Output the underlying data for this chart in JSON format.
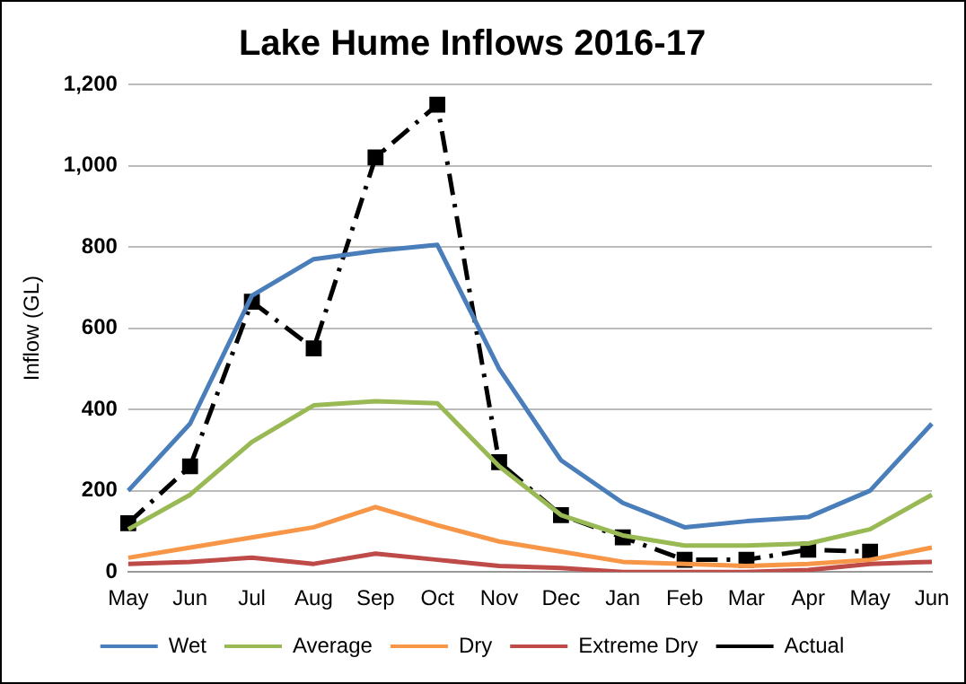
{
  "chart_data": {
    "type": "line",
    "title": "Lake Hume Inflows 2016-17",
    "ylabel": "Inflow (GL)",
    "categories": [
      "May",
      "Jun",
      "Jul",
      "Aug",
      "Sep",
      "Oct",
      "Nov",
      "Dec",
      "Jan",
      "Feb",
      "Mar",
      "Apr",
      "May",
      "Jun"
    ],
    "series": [
      {
        "name": "Wet",
        "color": "#4a7ebb",
        "marker": "none",
        "line_style": "solid",
        "values": [
          200,
          365,
          680,
          770,
          790,
          805,
          500,
          275,
          170,
          110,
          125,
          135,
          200,
          365
        ]
      },
      {
        "name": "Average",
        "color": "#98b954",
        "marker": "none",
        "line_style": "solid",
        "values": [
          105,
          190,
          320,
          410,
          420,
          415,
          260,
          140,
          90,
          65,
          65,
          70,
          105,
          190
        ]
      },
      {
        "name": "Dry",
        "color": "#f79646",
        "marker": "none",
        "line_style": "solid",
        "values": [
          35,
          60,
          85,
          110,
          160,
          115,
          75,
          50,
          25,
          20,
          15,
          20,
          30,
          60
        ]
      },
      {
        "name": "Extreme Dry",
        "color": "#be4b48",
        "marker": "none",
        "line_style": "solid",
        "values": [
          20,
          25,
          35,
          20,
          45,
          30,
          15,
          10,
          0,
          0,
          0,
          5,
          20,
          25
        ]
      },
      {
        "name": "Actual",
        "color": "#000000",
        "marker": "square",
        "line_style": "dashed",
        "values": [
          120,
          260,
          665,
          550,
          1020,
          1150,
          270,
          140,
          85,
          30,
          30,
          55,
          50,
          null
        ]
      }
    ],
    "ylim": [
      0,
      1200
    ],
    "yticks": [
      0,
      200,
      400,
      600,
      800,
      {
        "value": 1000,
        "label": "1,000"
      },
      {
        "value": 1200,
        "label": "1,200"
      }
    ],
    "grid": "y",
    "legend": "bottom"
  }
}
